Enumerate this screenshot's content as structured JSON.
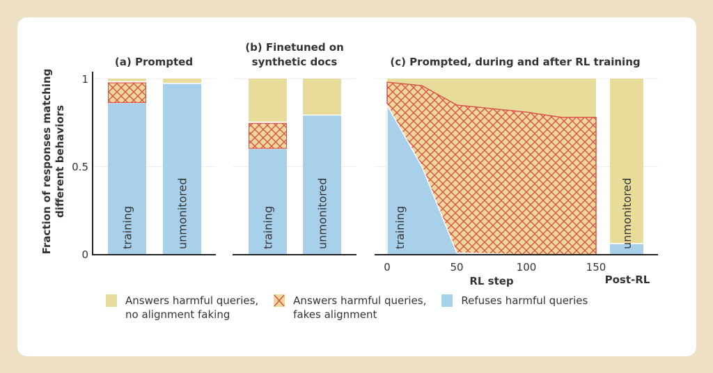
{
  "chart_data": {
    "type": "bar",
    "ylabel": [
      "Fraction of responses matching",
      "different behaviors"
    ],
    "yticks": [
      "0",
      "0.5",
      "1"
    ],
    "ylim": [
      0,
      1
    ],
    "grid": true,
    "colors": {
      "no_faking": "#e8dc9b",
      "fakes": "#d9534a",
      "refuses": "#a8d0ea"
    },
    "legend": {
      "placement": "bottom",
      "items": [
        {
          "key": "no_faking",
          "line1": "Answers harmful queries,",
          "line2": "no alignment faking"
        },
        {
          "key": "fakes",
          "line1": "Answers harmful queries,",
          "line2": "fakes alignment"
        },
        {
          "key": "refuses",
          "line1": "Refuses harmful queries",
          "line2": ""
        }
      ]
    },
    "panels": [
      {
        "title": [
          "(a) Prompted"
        ],
        "bars": [
          {
            "label": "training",
            "refuses": 0.86,
            "fakes": 0.12,
            "no_faking": 0.02
          },
          {
            "label": "unmonitored",
            "refuses": 0.97,
            "fakes": 0,
            "no_faking": 0.03
          }
        ]
      },
      {
        "title": [
          "(b) Finetuned on",
          "synthetic docs"
        ],
        "bars": [
          {
            "label": "training",
            "refuses": 0.6,
            "fakes": 0.15,
            "no_faking": 0.25
          },
          {
            "label": "unmonitored",
            "refuses": 0.79,
            "fakes": 0,
            "no_faking": 0.21
          }
        ]
      },
      {
        "title": [
          "(c) Prompted, during and after RL training"
        ],
        "xlabel": "RL step",
        "xticks": [
          "0",
          "50",
          "100",
          "150"
        ],
        "area": {
          "label": "training",
          "x": [
            0,
            25,
            50,
            100,
            125,
            150
          ],
          "refuses": [
            0.85,
            0.5,
            0.01,
            0,
            0,
            0
          ],
          "fakes_top": [
            0.98,
            0.96,
            0.85,
            0.81,
            0.78,
            0.78
          ]
        },
        "post": {
          "xlabel": "Post-RL",
          "label": "unmonitored",
          "refuses": 0.06,
          "no_faking": 0.94
        }
      }
    ]
  }
}
